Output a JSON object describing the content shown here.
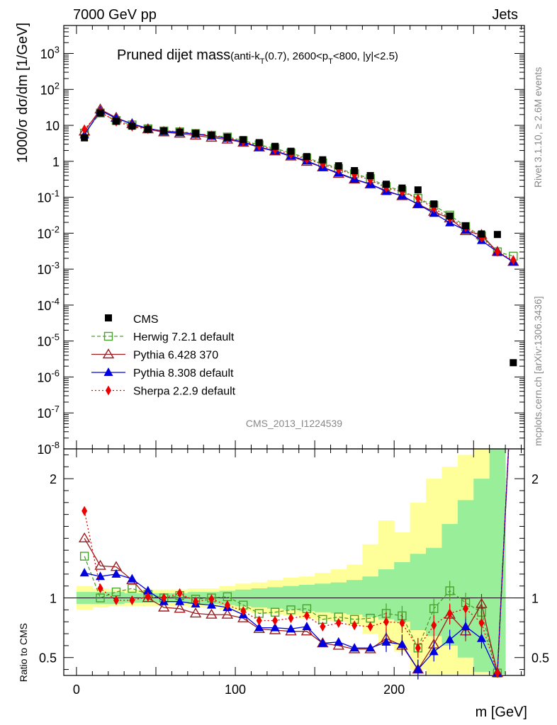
{
  "header": {
    "left": "7000 GeV pp",
    "right": "Jets"
  },
  "side": {
    "version": "Rivet 3.1.10, ≥ 2.6M events",
    "source": "mcplots.cern.ch [arXiv:1306.3436]"
  },
  "chart_data": {
    "type": "line",
    "title_main": "Pruned dijet mass",
    "title_sub": "(anti-k_T(0.7), 2600<p_T<800, |y|<2.5)",
    "analysis": "CMS_2013_I1224539",
    "xlabel": "m [GeV]",
    "ylabel": "1000/σ dσ/dm [1/GeV]",
    "ratio_ylabel": "Ratio to CMS",
    "xlim": [
      -8,
      282
    ],
    "ylim": [
      1e-08,
      6000
    ],
    "ratio_ylim": [
      0.35,
      2.25
    ],
    "x_ticks": [
      0,
      100,
      200
    ],
    "x_tick_labels": [
      "0",
      "100",
      "200"
    ],
    "ratio_ticks": [
      0.5,
      1,
      2
    ],
    "ratio_tick_labels": [
      "0.5",
      "1",
      "2"
    ],
    "x": [
      5,
      15,
      25,
      35,
      45,
      55,
      65,
      75,
      85,
      95,
      105,
      115,
      125,
      135,
      145,
      155,
      165,
      175,
      185,
      195,
      205,
      215,
      225,
      235,
      245,
      255,
      265,
      275
    ],
    "data": {
      "name": "CMS",
      "y": [
        4.5,
        22,
        13,
        9.5,
        7.8,
        7.0,
        6.5,
        6.0,
        5.3,
        4.7,
        4.0,
        3.3,
        2.6,
        1.9,
        1.35,
        1.1,
        0.75,
        0.55,
        0.4,
        0.23,
        0.18,
        0.16,
        0.065,
        0.03,
        0.016,
        0.0095,
        0.0092,
        2.5e-06
      ]
    },
    "series": [
      {
        "name": "Herwig 7.2.1 default",
        "color": "#4aa02c",
        "ratio": [
          1.35,
          1.0,
          1.05,
          1.08,
          1.03,
          1.0,
          1.02,
          0.99,
          1.0,
          1.01,
          0.94,
          0.87,
          0.88,
          0.9,
          0.91,
          0.82,
          0.84,
          0.82,
          0.83,
          0.87,
          0.85,
          0.58,
          0.91,
          1.06,
          0.96,
          0.88,
          0.33
        ]
      },
      {
        "name": "Pythia 6.428 370",
        "color": "#9b1c20",
        "ratio": [
          1.5,
          1.27,
          1.26,
          1.15,
          1.0,
          0.92,
          0.91,
          0.87,
          0.86,
          0.86,
          0.83,
          0.74,
          0.73,
          0.72,
          0.72,
          0.62,
          0.6,
          0.57,
          0.57,
          0.66,
          0.6,
          0.4,
          0.61,
          0.86,
          0.72,
          0.95,
          0.33
        ]
      },
      {
        "name": "Pythia 8.308 default",
        "color": "#0000e0",
        "ratio": [
          1.21,
          1.18,
          1.2,
          1.16,
          1.06,
          0.97,
          0.97,
          0.95,
          0.94,
          0.92,
          0.86,
          0.75,
          0.75,
          0.74,
          0.76,
          0.62,
          0.63,
          0.58,
          0.58,
          0.63,
          0.61,
          0.4,
          0.55,
          0.65,
          0.76,
          0.66,
          0.33
        ]
      },
      {
        "name": "Sherpa 2.2.9 default",
        "color": "#ee0000",
        "ratio": [
          1.73,
          1.08,
          0.98,
          0.98,
          1.01,
          1.0,
          1.04,
          0.97,
          0.99,
          0.94,
          0.89,
          0.81,
          0.81,
          0.83,
          0.85,
          0.76,
          0.79,
          0.77,
          0.76,
          0.8,
          0.79,
          0.58,
          0.77,
          0.87,
          0.91,
          0.79,
          0.33
        ]
      }
    ],
    "band_inner": [
      [
        0.95,
        1.05
      ],
      [
        0.95,
        1.05
      ],
      [
        0.95,
        1.05
      ],
      [
        0.96,
        1.04
      ],
      [
        0.96,
        1.04
      ],
      [
        0.96,
        1.04
      ],
      [
        0.96,
        1.04
      ],
      [
        0.95,
        1.05
      ],
      [
        0.95,
        1.05
      ],
      [
        0.94,
        1.06
      ],
      [
        0.93,
        1.07
      ],
      [
        0.92,
        1.08
      ],
      [
        0.91,
        1.09
      ],
      [
        0.9,
        1.1
      ],
      [
        0.89,
        1.11
      ],
      [
        0.88,
        1.12
      ],
      [
        0.87,
        1.13
      ],
      [
        0.86,
        1.15
      ],
      [
        0.84,
        1.18
      ],
      [
        0.82,
        1.24
      ],
      [
        0.8,
        1.3
      ],
      [
        0.73,
        1.37
      ],
      [
        0.68,
        1.42
      ],
      [
        0.6,
        1.62
      ],
      [
        0.5,
        1.82
      ],
      [
        0.38,
        2.0
      ],
      [
        0.36,
        2.25
      ]
    ],
    "band_outer": [
      [
        0.9,
        1.1
      ],
      [
        0.92,
        1.08
      ],
      [
        0.93,
        1.07
      ],
      [
        0.93,
        1.07
      ],
      [
        0.93,
        1.07
      ],
      [
        0.93,
        1.07
      ],
      [
        0.93,
        1.07
      ],
      [
        0.92,
        1.08
      ],
      [
        0.92,
        1.08
      ],
      [
        0.9,
        1.1
      ],
      [
        0.89,
        1.12
      ],
      [
        0.87,
        1.13
      ],
      [
        0.86,
        1.15
      ],
      [
        0.85,
        1.17
      ],
      [
        0.83,
        1.18
      ],
      [
        0.81,
        1.21
      ],
      [
        0.8,
        1.24
      ],
      [
        0.77,
        1.28
      ],
      [
        0.7,
        1.45
      ],
      [
        0.6,
        1.65
      ],
      [
        0.55,
        1.55
      ],
      [
        0.4,
        1.8
      ],
      [
        0.36,
        2.0
      ],
      [
        0.36,
        2.1
      ],
      [
        0.36,
        2.2
      ],
      [
        0.36,
        2.25
      ],
      [
        0.36,
        2.25
      ]
    ]
  }
}
